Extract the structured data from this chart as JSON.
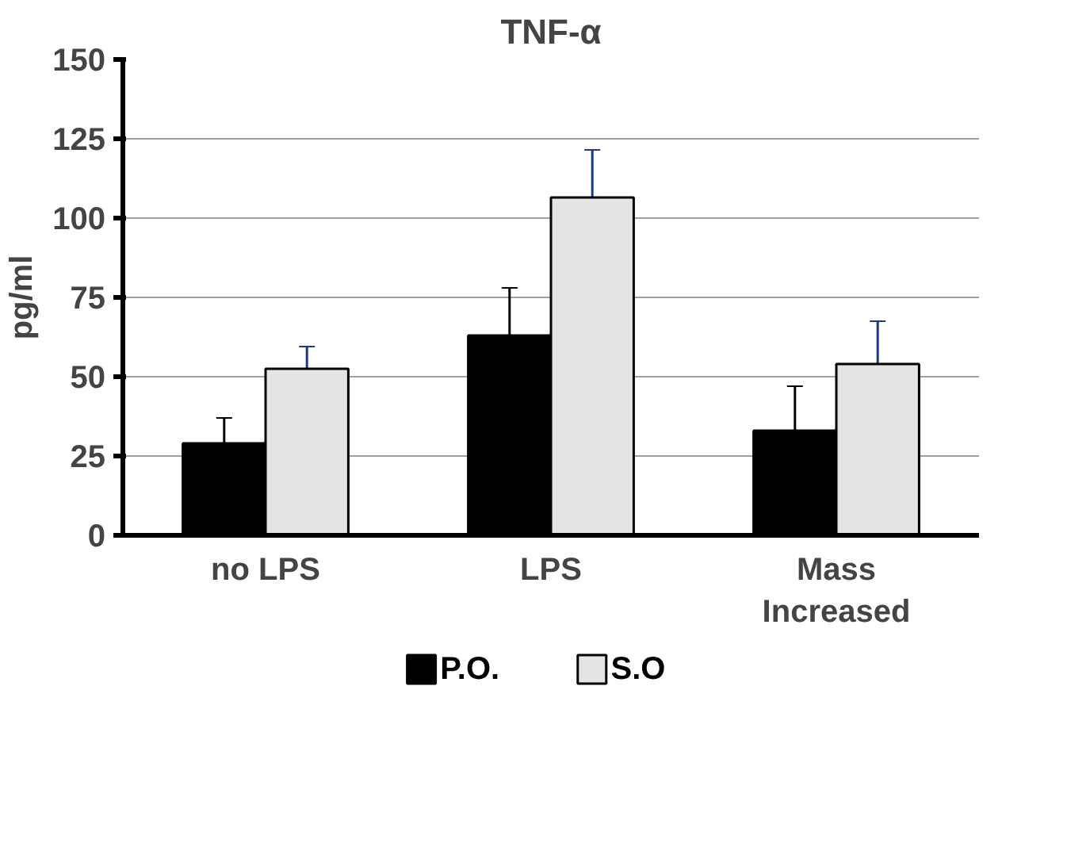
{
  "chart_data": {
    "type": "bar",
    "title": "TNF-α",
    "ylabel": "pg/ml",
    "categories": [
      "no LPS",
      "LPS",
      "Mass\nIncreased"
    ],
    "series": [
      {
        "name": "P.O.",
        "color": "#000000",
        "values": [
          29,
          63,
          33
        ],
        "errors": [
          8,
          15,
          14
        ]
      },
      {
        "name": "S.O",
        "color": "#e4e4e4",
        "values": [
          52.5,
          106.5,
          54
        ],
        "errors": [
          7,
          15,
          13.5
        ]
      }
    ],
    "ylim": [
      0,
      150
    ],
    "yticks": [
      0,
      25,
      50,
      75,
      100,
      125,
      150
    ],
    "grid": "y",
    "legend": "bottom"
  }
}
